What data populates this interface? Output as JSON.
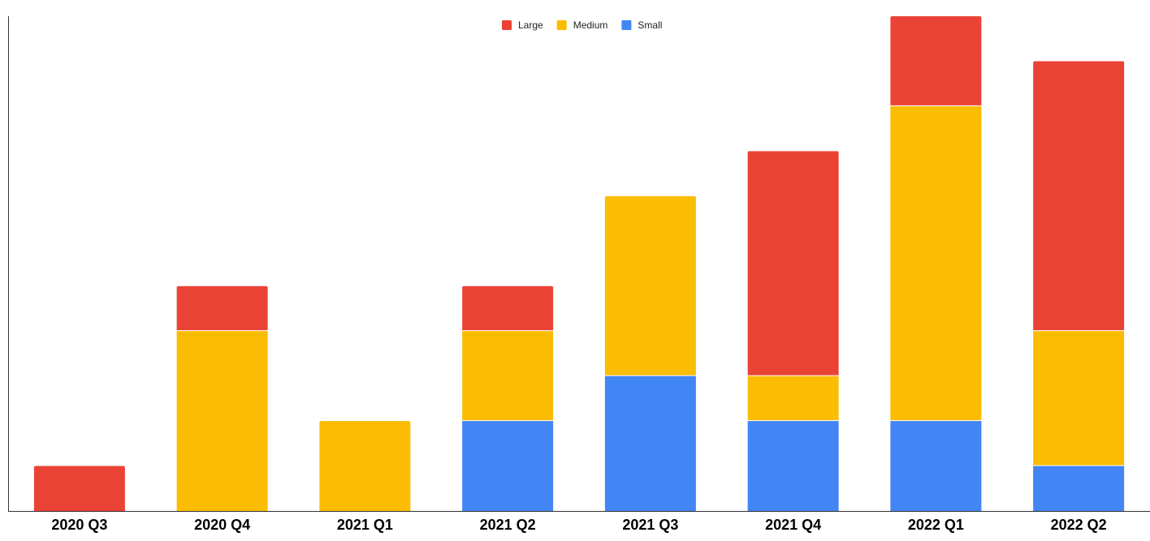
{
  "chart_data": {
    "type": "bar",
    "stacked": true,
    "title": "",
    "xlabel": "",
    "ylabel": "",
    "ylim": [
      0,
      11
    ],
    "grid": false,
    "legend_position": "top-center",
    "categories": [
      "2020 Q3",
      "2020 Q4",
      "2021 Q1",
      "2021 Q2",
      "2021 Q3",
      "2021 Q4",
      "2022 Q1",
      "2022 Q2"
    ],
    "series": [
      {
        "name": "Small",
        "color": "#4285F4",
        "values": [
          0,
          0,
          0,
          2,
          3,
          2,
          2,
          1
        ]
      },
      {
        "name": "Medium",
        "color": "#FBBC04",
        "values": [
          0,
          4,
          2,
          2,
          4,
          1,
          7,
          3
        ]
      },
      {
        "name": "Large",
        "color": "#EA4335",
        "values": [
          1,
          1,
          0,
          1,
          0,
          5,
          2,
          6
        ]
      }
    ],
    "legend_order": [
      "Large",
      "Medium",
      "Small"
    ]
  }
}
